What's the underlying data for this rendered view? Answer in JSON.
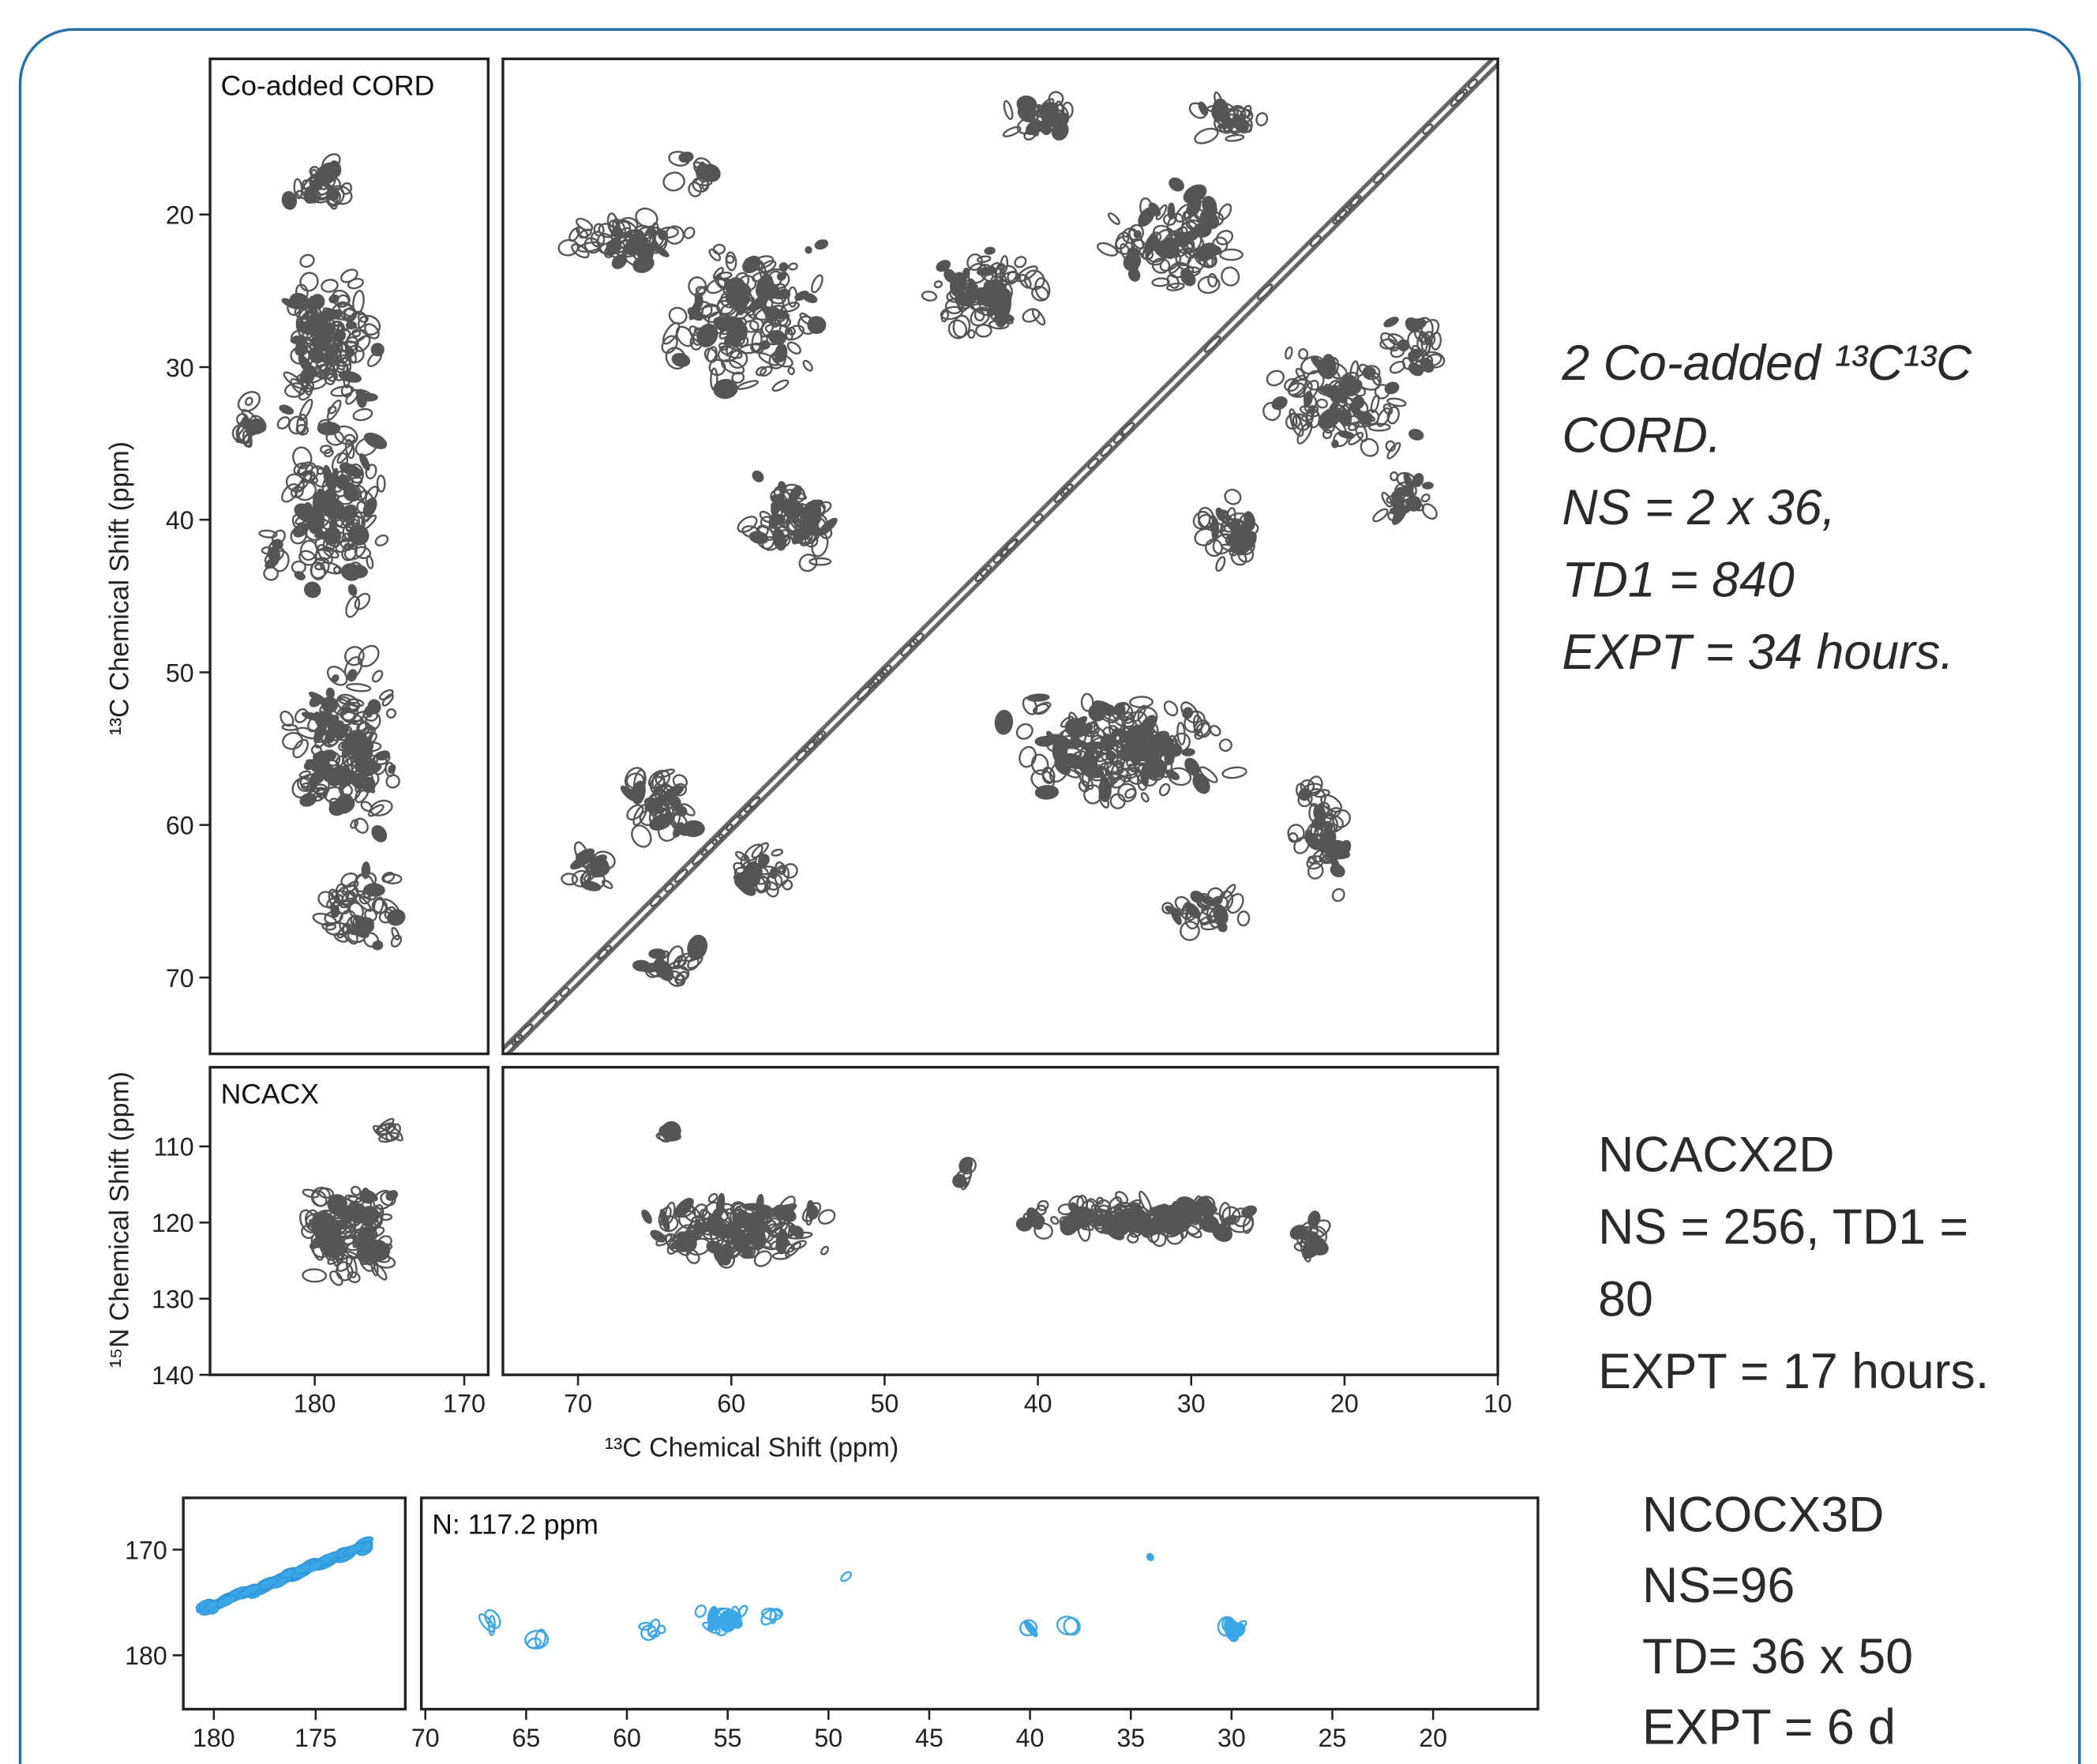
{
  "figure": {
    "y_label_top": "¹³C Chemical Shift  (ppm)",
    "y_label_bottom": "¹⁵N Chemical Shift  (ppm)",
    "x_label": "¹³C Chemical Shift  (ppm)",
    "panels": [
      {
        "label": "Co-added CORD",
        "ylim": [
          9.8,
          75
        ],
        "yticks": [
          20,
          30,
          40,
          50,
          60,
          70
        ]
      },
      {
        "ylim": [
          9.8,
          75
        ]
      },
      {
        "label": "NCACX",
        "xlim": [
          187,
          168.4
        ],
        "xticks": [
          180,
          170
        ],
        "ylim": [
          99.6,
          140
        ],
        "yticks": [
          110,
          120,
          130,
          140
        ]
      },
      {
        "xlim": [
          74.9,
          10
        ],
        "xticks": [
          70,
          60,
          50,
          40,
          30,
          20,
          10
        ],
        "ylim": [
          99.6,
          140
        ]
      },
      {
        "xlim": [
          181.5,
          170.6
        ],
        "xticks": [
          180,
          175
        ],
        "ylim": [
          165.1,
          185.1
        ],
        "yticks": [
          170,
          180
        ]
      },
      {
        "label": "N: 117.2 ppm",
        "xlim": [
          70.2,
          14.8
        ],
        "xticks": [
          70,
          65,
          60,
          55,
          50,
          45,
          40,
          35,
          30,
          25,
          20
        ],
        "ylim": [
          165.1,
          185.1
        ]
      }
    ]
  },
  "notes": [
    {
      "lines": [
        "2 Co-added ¹³C¹³C",
        "CORD.",
        "NS = 2 x 36,",
        "TD1 = 840",
        "EXPT = 34 hours."
      ]
    },
    {
      "lines": [
        "NCACX2D",
        "NS = 256,  TD1 =",
        "80",
        "EXPT = 17 hours."
      ]
    },
    {
      "lines": [
        "NCOCX3D",
        "NS=96",
        "TD= 36 x 50",
        "EXPT = 6 d"
      ]
    }
  ]
}
